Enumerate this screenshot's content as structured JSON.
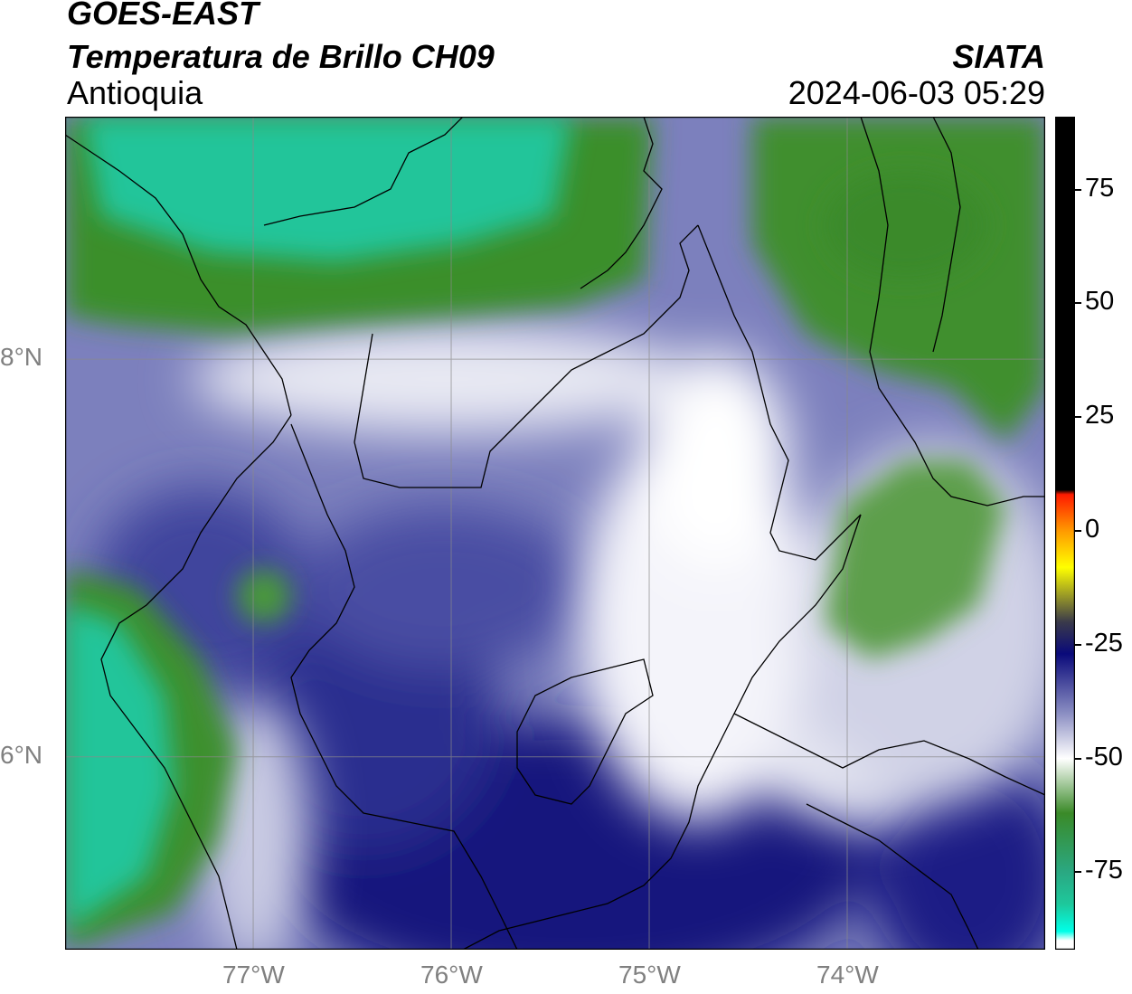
{
  "header": {
    "satellite": "GOES-EAST",
    "product": "Temperatura de Brillo CH09",
    "region": "Antioquia",
    "organization": "SIATA",
    "datetime": "2024-06-03 05:29"
  },
  "map": {
    "lat_labels": [
      {
        "label": "8°N",
        "lat": 8.0
      },
      {
        "label": "6°N",
        "lat": 6.0
      }
    ],
    "lon_labels": [
      {
        "label": "77°W",
        "lon": -77.0
      },
      {
        "label": "76°W",
        "lon": -76.0
      },
      {
        "label": "75°W",
        "lon": -75.0
      },
      {
        "label": "74°W",
        "lon": -74.0
      }
    ],
    "extent": {
      "lon_min": -77.95,
      "lon_max": -73.0,
      "lat_min": 5.03,
      "lat_max": 9.22
    },
    "gridlines": true
  },
  "colorbar": {
    "ticks": [
      {
        "label": "75",
        "value": 75
      },
      {
        "label": "50",
        "value": 50
      },
      {
        "label": "25",
        "value": 25
      },
      {
        "label": "0",
        "value": 0
      },
      {
        "label": "-25",
        "value": -25
      },
      {
        "label": "-50",
        "value": -50
      },
      {
        "label": "-75",
        "value": -75
      }
    ],
    "range": [
      -92,
      91
    ],
    "colors": {
      "black": "#000000",
      "red": "#ff1a00",
      "orange": "#ff9a00",
      "yellow": "#ffff00",
      "navy": "#0a0a7a",
      "white": "#ffffff",
      "green": "#3a8a28",
      "teal": "#1ec89c",
      "cyan": "#00ffe8"
    }
  }
}
